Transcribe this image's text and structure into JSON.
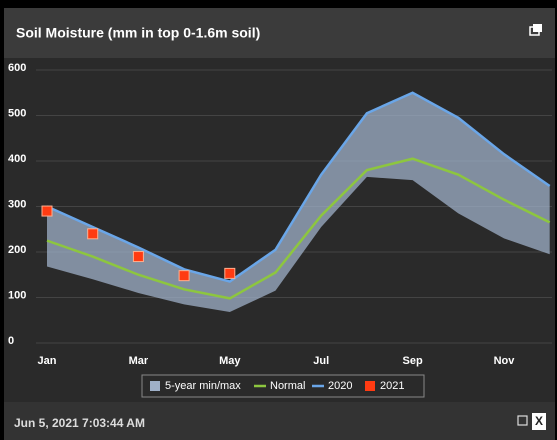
{
  "chart_data": {
    "type": "line",
    "title": "Soil Moisture (mm in top 0-1.6m soil)",
    "categories": [
      "Jan",
      null,
      "Mar",
      null,
      "May",
      null,
      "Jul",
      null,
      "Sep",
      null,
      "Nov",
      null
    ],
    "ylim": [
      0,
      600
    ],
    "yticks": [
      0,
      100,
      200,
      300,
      400,
      500,
      600
    ],
    "grid": true,
    "series": [
      {
        "name": "5-year min/max",
        "color": "#9fb0c8",
        "style": "range",
        "low": [
          168,
          140,
          110,
          85,
          68,
          115,
          255,
          365,
          358,
          285,
          230,
          195
        ],
        "high": [
          300,
          255,
          210,
          160,
          135,
          205,
          370,
          505,
          550,
          495,
          415,
          345
        ]
      },
      {
        "name": "Normal",
        "color": "#8dc63f",
        "style": "line",
        "values": [
          225,
          190,
          150,
          118,
          98,
          155,
          280,
          380,
          405,
          370,
          315,
          265
        ]
      },
      {
        "name": "2020",
        "color": "#6aa6e8",
        "style": "line",
        "values": [
          300,
          255,
          210,
          162,
          135,
          205,
          370,
          505,
          550,
          495,
          415,
          345
        ]
      },
      {
        "name": "2021",
        "color": "#ff3b12",
        "style": "markers",
        "values": [
          290,
          240,
          190,
          148,
          153,
          null,
          null,
          null,
          null,
          null,
          null,
          null
        ]
      }
    ]
  },
  "footer": {
    "timestamp": "Jun 5, 2021 7:03:44 AM"
  }
}
